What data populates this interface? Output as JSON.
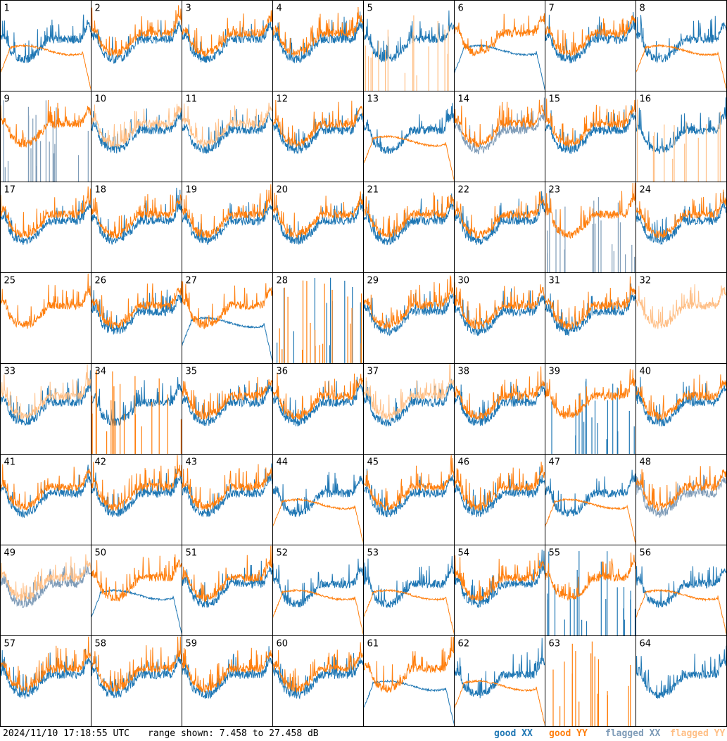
{
  "footer": {
    "timestamp": "2024/11/10 17:18:55 UTC",
    "range_text": "range shown: 7.458 to 27.458 dB"
  },
  "legend": [
    {
      "label": "good XX",
      "color": "#1f77b4"
    },
    {
      "label": "good YY",
      "color": "#ff7f0e"
    },
    {
      "label": "flagged XX",
      "color": "#7f9cb8"
    },
    {
      "label": "flagged YY",
      "color": "#ffbf86"
    }
  ],
  "chart_data": {
    "type": "line",
    "title": "",
    "ylim": [
      7.458,
      27.458
    ],
    "yunit": "dB",
    "panel_count": 64,
    "panels": [
      {
        "label": "1",
        "xx": "good",
        "yy": "good",
        "xx_shape": "normal",
        "yy_shape": "bandpass_flat"
      },
      {
        "label": "2",
        "xx": "good",
        "yy": "good",
        "xx_shape": "normal",
        "yy_shape": "normal"
      },
      {
        "label": "3",
        "xx": "good",
        "yy": "good",
        "xx_shape": "normal",
        "yy_shape": "normal"
      },
      {
        "label": "4",
        "xx": "good",
        "yy": "good",
        "xx_shape": "normal",
        "yy_shape": "normal"
      },
      {
        "label": "5",
        "xx": "good",
        "yy": "flagged",
        "xx_shape": "normal",
        "yy_shape": "spikes"
      },
      {
        "label": "6",
        "xx": "good",
        "yy": "good",
        "xx_shape": "bandpass_flat",
        "yy_shape": "normal"
      },
      {
        "label": "7",
        "xx": "good",
        "yy": "good",
        "xx_shape": "normal",
        "yy_shape": "normal"
      },
      {
        "label": "8",
        "xx": "good",
        "yy": "good",
        "xx_shape": "normal",
        "yy_shape": "bandpass_flat"
      },
      {
        "label": "9",
        "xx": "flagged",
        "yy": "good",
        "xx_shape": "spikes",
        "yy_shape": "normal"
      },
      {
        "label": "10",
        "xx": "good",
        "yy": "flagged",
        "xx_shape": "normal",
        "yy_shape": "normal"
      },
      {
        "label": "11",
        "xx": "good",
        "yy": "flagged",
        "xx_shape": "normal",
        "yy_shape": "normal"
      },
      {
        "label": "12",
        "xx": "good",
        "yy": "good",
        "xx_shape": "normal",
        "yy_shape": "normal"
      },
      {
        "label": "13",
        "xx": "good",
        "yy": "good",
        "xx_shape": "normal",
        "yy_shape": "bandpass_flat"
      },
      {
        "label": "14",
        "xx": "flagged",
        "yy": "good",
        "xx_shape": "normal",
        "yy_shape": "normal"
      },
      {
        "label": "15",
        "xx": "good",
        "yy": "good",
        "xx_shape": "normal",
        "yy_shape": "normal"
      },
      {
        "label": "16",
        "xx": "good",
        "yy": "flagged",
        "xx_shape": "normal",
        "yy_shape": "spikes"
      },
      {
        "label": "17",
        "xx": "good",
        "yy": "good",
        "xx_shape": "normal",
        "yy_shape": "normal"
      },
      {
        "label": "18",
        "xx": "good",
        "yy": "good",
        "xx_shape": "normal",
        "yy_shape": "normal"
      },
      {
        "label": "19",
        "xx": "good",
        "yy": "good",
        "xx_shape": "normal",
        "yy_shape": "normal"
      },
      {
        "label": "20",
        "xx": "good",
        "yy": "good",
        "xx_shape": "normal",
        "yy_shape": "normal"
      },
      {
        "label": "21",
        "xx": "good",
        "yy": "good",
        "xx_shape": "normal",
        "yy_shape": "normal"
      },
      {
        "label": "22",
        "xx": "good",
        "yy": "good",
        "xx_shape": "normal",
        "yy_shape": "normal"
      },
      {
        "label": "23",
        "xx": "flagged",
        "yy": "good",
        "xx_shape": "spikes",
        "yy_shape": "normal"
      },
      {
        "label": "24",
        "xx": "good",
        "yy": "good",
        "xx_shape": "normal",
        "yy_shape": "normal"
      },
      {
        "label": "25",
        "xx": "good",
        "yy": "good",
        "xx_shape": "none",
        "yy_shape": "normal"
      },
      {
        "label": "26",
        "xx": "good",
        "yy": "good",
        "xx_shape": "normal",
        "yy_shape": "normal"
      },
      {
        "label": "27",
        "xx": "good",
        "yy": "good",
        "xx_shape": "bandpass_flat",
        "yy_shape": "normal"
      },
      {
        "label": "28",
        "xx": "good",
        "yy": "good",
        "xx_shape": "spikes",
        "yy_shape": "spikes"
      },
      {
        "label": "29",
        "xx": "good",
        "yy": "good",
        "xx_shape": "normal",
        "yy_shape": "normal"
      },
      {
        "label": "30",
        "xx": "good",
        "yy": "good",
        "xx_shape": "normal",
        "yy_shape": "normal"
      },
      {
        "label": "31",
        "xx": "good",
        "yy": "good",
        "xx_shape": "normal",
        "yy_shape": "normal"
      },
      {
        "label": "32",
        "xx": "flagged",
        "yy": "flagged",
        "xx_shape": "none",
        "yy_shape": "normal"
      },
      {
        "label": "33",
        "xx": "good",
        "yy": "flagged",
        "xx_shape": "normal",
        "yy_shape": "normal"
      },
      {
        "label": "34",
        "xx": "good",
        "yy": "good",
        "xx_shape": "normal",
        "yy_shape": "spikes"
      },
      {
        "label": "35",
        "xx": "good",
        "yy": "good",
        "xx_shape": "normal",
        "yy_shape": "normal"
      },
      {
        "label": "36",
        "xx": "good",
        "yy": "good",
        "xx_shape": "normal",
        "yy_shape": "normal"
      },
      {
        "label": "37",
        "xx": "good",
        "yy": "flagged",
        "xx_shape": "normal",
        "yy_shape": "normal"
      },
      {
        "label": "38",
        "xx": "good",
        "yy": "good",
        "xx_shape": "normal",
        "yy_shape": "normal"
      },
      {
        "label": "39",
        "xx": "good",
        "yy": "good",
        "xx_shape": "spikes",
        "yy_shape": "normal"
      },
      {
        "label": "40",
        "xx": "good",
        "yy": "good",
        "xx_shape": "normal",
        "yy_shape": "normal"
      },
      {
        "label": "41",
        "xx": "good",
        "yy": "good",
        "xx_shape": "normal",
        "yy_shape": "normal"
      },
      {
        "label": "42",
        "xx": "good",
        "yy": "good",
        "xx_shape": "normal",
        "yy_shape": "normal"
      },
      {
        "label": "43",
        "xx": "good",
        "yy": "good",
        "xx_shape": "normal",
        "yy_shape": "normal"
      },
      {
        "label": "44",
        "xx": "good",
        "yy": "good",
        "xx_shape": "normal",
        "yy_shape": "bandpass_flat"
      },
      {
        "label": "45",
        "xx": "good",
        "yy": "good",
        "xx_shape": "normal",
        "yy_shape": "normal"
      },
      {
        "label": "46",
        "xx": "good",
        "yy": "good",
        "xx_shape": "normal",
        "yy_shape": "normal"
      },
      {
        "label": "47",
        "xx": "good",
        "yy": "good",
        "xx_shape": "normal",
        "yy_shape": "bandpass_flat"
      },
      {
        "label": "48",
        "xx": "flagged",
        "yy": "good",
        "xx_shape": "normal",
        "yy_shape": "normal"
      },
      {
        "label": "49",
        "xx": "flagged",
        "yy": "flagged",
        "xx_shape": "normal",
        "yy_shape": "normal"
      },
      {
        "label": "50",
        "xx": "good",
        "yy": "good",
        "xx_shape": "bandpass_flat",
        "yy_shape": "normal"
      },
      {
        "label": "51",
        "xx": "good",
        "yy": "good",
        "xx_shape": "normal",
        "yy_shape": "normal"
      },
      {
        "label": "52",
        "xx": "good",
        "yy": "good",
        "xx_shape": "normal",
        "yy_shape": "bandpass_flat"
      },
      {
        "label": "53",
        "xx": "good",
        "yy": "good",
        "xx_shape": "normal",
        "yy_shape": "bandpass_flat"
      },
      {
        "label": "54",
        "xx": "good",
        "yy": "good",
        "xx_shape": "normal",
        "yy_shape": "normal"
      },
      {
        "label": "55",
        "xx": "good",
        "yy": "good",
        "xx_shape": "spikes",
        "yy_shape": "normal"
      },
      {
        "label": "56",
        "xx": "good",
        "yy": "good",
        "xx_shape": "normal",
        "yy_shape": "bandpass_flat"
      },
      {
        "label": "57",
        "xx": "good",
        "yy": "good",
        "xx_shape": "normal",
        "yy_shape": "normal"
      },
      {
        "label": "58",
        "xx": "good",
        "yy": "good",
        "xx_shape": "normal",
        "yy_shape": "normal"
      },
      {
        "label": "59",
        "xx": "good",
        "yy": "good",
        "xx_shape": "normal",
        "yy_shape": "normal"
      },
      {
        "label": "60",
        "xx": "good",
        "yy": "good",
        "xx_shape": "normal",
        "yy_shape": "normal"
      },
      {
        "label": "61",
        "xx": "good",
        "yy": "good",
        "xx_shape": "bandpass_flat",
        "yy_shape": "normal"
      },
      {
        "label": "62",
        "xx": "good",
        "yy": "good",
        "xx_shape": "normal",
        "yy_shape": "bandpass_flat"
      },
      {
        "label": "63",
        "xx": "good",
        "yy": "good",
        "xx_shape": "none",
        "yy_shape": "spikes"
      },
      {
        "label": "64",
        "xx": "good",
        "yy": "good",
        "xx_shape": "normal",
        "yy_shape": "none"
      }
    ]
  }
}
